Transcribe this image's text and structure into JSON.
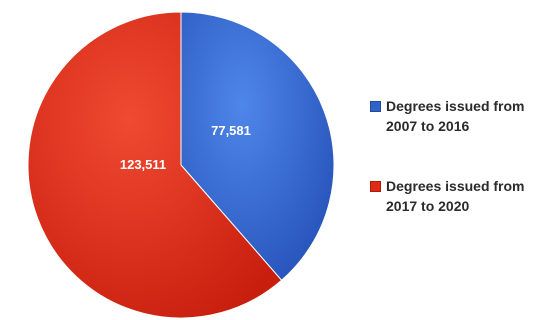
{
  "chart_data": {
    "type": "pie",
    "title": "",
    "legend_position": "right",
    "slices": [
      {
        "label": "Degrees issued from 2007 to 2016",
        "value": 77581,
        "value_label": "77,581",
        "color": "#2f63c8"
      },
      {
        "label": "Degrees issued from 2017 to 2020",
        "value": 123511,
        "value_label": "123,511",
        "color": "#e02a16"
      }
    ]
  }
}
